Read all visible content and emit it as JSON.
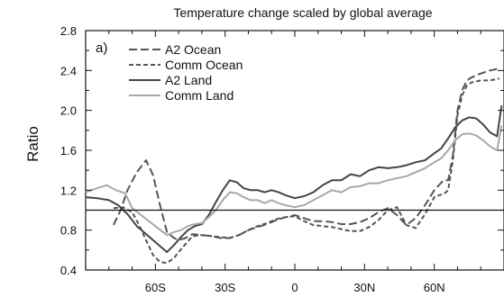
{
  "chart_data": {
    "type": "line",
    "title": "Temperature change scaled by global average",
    "panel_label": "a)",
    "ylabel": "Ratio",
    "xlabel": "",
    "xlim": [
      -90,
      90
    ],
    "ylim": [
      0.4,
      2.8
    ],
    "x_ticks": [
      {
        "value": -60,
        "label": "60S"
      },
      {
        "value": -30,
        "label": "30S"
      },
      {
        "value": 0,
        "label": "0"
      },
      {
        "value": 30,
        "label": "30N"
      },
      {
        "value": 60,
        "label": "60N"
      }
    ],
    "y_ticks": [
      {
        "value": 0.4,
        "label": "0.4"
      },
      {
        "value": 0.8,
        "label": "0.8"
      },
      {
        "value": 1.2,
        "label": "1.2"
      },
      {
        "value": 1.6,
        "label": "1.6"
      },
      {
        "value": 2.0,
        "label": "2.0"
      },
      {
        "value": 2.4,
        "label": "2.4"
      },
      {
        "value": 2.8,
        "label": "2.8"
      }
    ],
    "reference_line": 1.0,
    "legend_position": "top-left",
    "series": [
      {
        "name": "A2 Ocean",
        "color": "#555555",
        "dash": "long-dash",
        "x": [
          -78,
          -75,
          -72,
          -68,
          -64,
          -61,
          -58,
          -55,
          -52,
          -50,
          -47,
          -44,
          -40,
          -36,
          -32,
          -28,
          -24,
          -20,
          -16,
          -12,
          -8,
          -4,
          0,
          4,
          8,
          12,
          16,
          20,
          24,
          28,
          32,
          36,
          40,
          44,
          48,
          52,
          56,
          60,
          62,
          64,
          66,
          68,
          70,
          72,
          74,
          76,
          80,
          84,
          88
        ],
        "y": [
          0.85,
          1.0,
          1.2,
          1.38,
          1.5,
          1.35,
          1.05,
          0.78,
          0.72,
          0.7,
          0.72,
          0.76,
          0.75,
          0.74,
          0.72,
          0.72,
          0.75,
          0.8,
          0.83,
          0.86,
          0.9,
          0.93,
          0.95,
          0.92,
          0.89,
          0.89,
          0.88,
          0.86,
          0.86,
          0.88,
          0.92,
          0.98,
          1.02,
          0.95,
          0.85,
          0.92,
          1.05,
          1.2,
          1.25,
          1.3,
          1.3,
          1.55,
          2.0,
          2.2,
          2.3,
          2.33,
          2.37,
          2.4,
          2.42
        ]
      },
      {
        "name": "Comm Ocean",
        "color": "#555555",
        "dash": "short-dash",
        "x": [
          -78,
          -74,
          -70,
          -67,
          -64,
          -61,
          -58,
          -55,
          -52,
          -50,
          -47,
          -44,
          -40,
          -36,
          -32,
          -28,
          -24,
          -20,
          -16,
          -12,
          -8,
          -4,
          0,
          4,
          8,
          12,
          16,
          20,
          24,
          28,
          32,
          36,
          40,
          44,
          48,
          52,
          56,
          60,
          62,
          64,
          66,
          68,
          70,
          72,
          74,
          76,
          80,
          84,
          88
        ],
        "y": [
          1.02,
          1.03,
          0.98,
          0.85,
          0.7,
          0.55,
          0.48,
          0.47,
          0.52,
          0.58,
          0.66,
          0.74,
          0.75,
          0.74,
          0.73,
          0.72,
          0.75,
          0.8,
          0.84,
          0.87,
          0.91,
          0.93,
          0.94,
          0.89,
          0.85,
          0.84,
          0.83,
          0.81,
          0.79,
          0.79,
          0.83,
          0.9,
          1.0,
          1.03,
          0.85,
          0.82,
          0.96,
          1.13,
          1.15,
          1.16,
          1.2,
          1.5,
          1.95,
          2.15,
          2.25,
          2.28,
          2.3,
          2.3,
          2.32
        ]
      },
      {
        "name": "A2 Land",
        "color": "#444444",
        "dash": "solid",
        "x": [
          -90,
          -85,
          -80,
          -76,
          -72,
          -68,
          -55,
          -52,
          -49,
          -46,
          -43,
          -40,
          -37,
          -34,
          -31,
          -28,
          -25,
          -22,
          -19,
          -16,
          -13,
          -10,
          -7,
          -4,
          0,
          4,
          8,
          12,
          16,
          20,
          24,
          28,
          32,
          36,
          40,
          44,
          48,
          52,
          56,
          60,
          63,
          66,
          69,
          72,
          75,
          78,
          81,
          84,
          87,
          89
        ],
        "y": [
          1.13,
          1.12,
          1.1,
          1.05,
          0.96,
          0.84,
          0.58,
          0.65,
          0.73,
          0.8,
          0.84,
          0.86,
          0.95,
          1.08,
          1.2,
          1.3,
          1.28,
          1.22,
          1.2,
          1.2,
          1.18,
          1.2,
          1.18,
          1.15,
          1.12,
          1.14,
          1.18,
          1.25,
          1.3,
          1.3,
          1.36,
          1.34,
          1.4,
          1.43,
          1.42,
          1.43,
          1.45,
          1.48,
          1.5,
          1.57,
          1.62,
          1.72,
          1.83,
          1.9,
          1.93,
          1.92,
          1.86,
          1.78,
          1.74,
          2.05
        ]
      },
      {
        "name": "Comm Land",
        "color": "#a8a8a8",
        "dash": "solid",
        "x": [
          -90,
          -85,
          -81,
          -77,
          -73,
          -70,
          -55,
          -52,
          -49,
          -46,
          -43,
          -40,
          -37,
          -34,
          -31,
          -28,
          -25,
          -22,
          -19,
          -16,
          -13,
          -10,
          -7,
          -4,
          0,
          4,
          8,
          12,
          16,
          20,
          24,
          28,
          32,
          36,
          40,
          44,
          48,
          52,
          56,
          60,
          63,
          66,
          69,
          72,
          75,
          78,
          81,
          84,
          87,
          89
        ],
        "y": [
          1.18,
          1.22,
          1.25,
          1.2,
          1.17,
          1.02,
          0.75,
          0.78,
          0.8,
          0.84,
          0.86,
          0.87,
          0.93,
          1.0,
          1.1,
          1.18,
          1.17,
          1.13,
          1.1,
          1.1,
          1.07,
          1.1,
          1.07,
          1.05,
          1.03,
          1.05,
          1.1,
          1.15,
          1.2,
          1.18,
          1.23,
          1.24,
          1.27,
          1.27,
          1.3,
          1.32,
          1.34,
          1.38,
          1.42,
          1.48,
          1.52,
          1.6,
          1.7,
          1.76,
          1.77,
          1.75,
          1.7,
          1.64,
          1.6,
          1.85
        ]
      }
    ]
  }
}
